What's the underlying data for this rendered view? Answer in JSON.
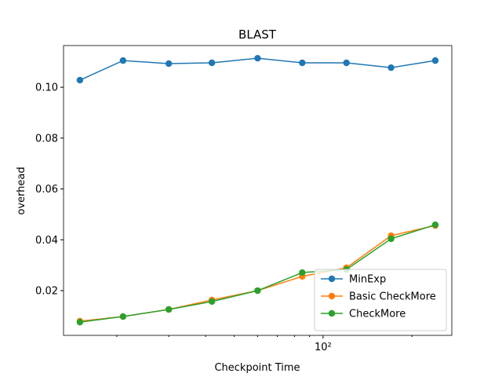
{
  "chart_data": {
    "type": "line",
    "title": "BLAST",
    "xlabel": "Checkpoint Time",
    "ylabel": "overhead",
    "xscale": "log",
    "x": [
      15,
      21,
      30,
      42,
      60,
      85,
      120,
      170,
      240
    ],
    "series": [
      {
        "name": "MinExp",
        "color": "#1f77b4",
        "values": [
          0.1028,
          0.1105,
          0.1093,
          0.1096,
          0.1114,
          0.1096,
          0.1096,
          0.1077,
          0.1105
        ]
      },
      {
        "name": "Basic CheckMore",
        "color": "#ff7f0e",
        "values": [
          0.008,
          0.0098,
          0.0126,
          0.0163,
          0.02,
          0.0256,
          0.029,
          0.0416,
          0.0456
        ]
      },
      {
        "name": "CheckMore",
        "color": "#2ca02c",
        "values": [
          0.0076,
          0.0098,
          0.0126,
          0.0157,
          0.02,
          0.0271,
          0.0283,
          0.0404,
          0.0459
        ]
      }
    ],
    "xlim": [
      13.2,
      273
    ],
    "xticks": [
      {
        "value": 100,
        "label": "10²"
      }
    ],
    "xminorticks": [
      20,
      30,
      40,
      50,
      60,
      70,
      80,
      90,
      200
    ],
    "ylim": [
      0.0024,
      0.1164
    ],
    "yticks": [
      0.02,
      0.04,
      0.06,
      0.08,
      {
        "value": 0.1,
        "label": "0.10"
      }
    ],
    "legend": "lower right"
  }
}
